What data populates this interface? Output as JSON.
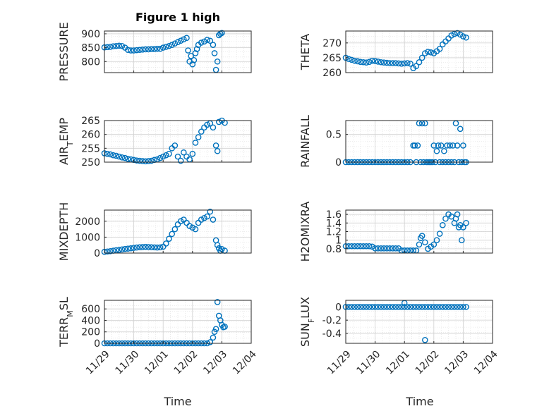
{
  "figure": {
    "title": "Figure 1 high",
    "xlabel_left": "Time",
    "xlabel_right": "Time",
    "marker_color": "#0072BD"
  },
  "chart_data": [
    {
      "type": "scatter",
      "ylabel": "PRESSURE",
      "xlim": [
        0,
        5
      ],
      "xticks": [
        "11/29",
        "11/30",
        "12/01",
        "12/02",
        "12/03",
        "12/04"
      ],
      "ylim": [
        760,
        910
      ],
      "yticks": [
        800,
        850,
        900
      ],
      "grid": true,
      "x": [
        0.0,
        0.1,
        0.2,
        0.3,
        0.4,
        0.5,
        0.6,
        0.7,
        0.8,
        0.9,
        1.0,
        1.1,
        1.2,
        1.3,
        1.4,
        1.5,
        1.6,
        1.7,
        1.8,
        1.9,
        2.0,
        2.1,
        2.2,
        2.3,
        2.4,
        2.5,
        2.6,
        2.7,
        2.8,
        2.85,
        2.9,
        2.95,
        3.0,
        3.05,
        3.1,
        3.15,
        3.2,
        3.3,
        3.4,
        3.5,
        3.6,
        3.7,
        3.75,
        3.8,
        3.85,
        3.9,
        3.95,
        4.0
      ],
      "y": [
        851,
        852,
        853,
        855,
        856,
        857,
        856,
        850,
        842,
        840,
        840,
        841,
        842,
        843,
        844,
        844,
        845,
        845,
        846,
        846,
        850,
        853,
        856,
        860,
        865,
        870,
        875,
        880,
        885,
        840,
        800,
        820,
        790,
        805,
        830,
        845,
        860,
        868,
        872,
        878,
        875,
        860,
        830,
        770,
        800,
        895,
        900,
        903
      ]
    },
    {
      "type": "scatter",
      "ylabel": "THETA",
      "xlim": [
        0,
        5
      ],
      "xticks": [
        "11/29",
        "11/30",
        "12/01",
        "12/02",
        "12/03",
        "12/04"
      ],
      "ylim": [
        260,
        274
      ],
      "yticks": [
        260,
        265,
        270
      ],
      "grid": true,
      "x": [
        0.0,
        0.1,
        0.2,
        0.3,
        0.4,
        0.5,
        0.6,
        0.7,
        0.8,
        0.9,
        1.0,
        1.1,
        1.2,
        1.3,
        1.4,
        1.5,
        1.6,
        1.7,
        1.8,
        1.9,
        2.0,
        2.1,
        2.2,
        2.3,
        2.4,
        2.5,
        2.6,
        2.7,
        2.8,
        2.9,
        3.0,
        3.1,
        3.2,
        3.3,
        3.4,
        3.5,
        3.6,
        3.7,
        3.8,
        3.9,
        4.0,
        4.1
      ],
      "y": [
        265.0,
        264.6,
        264.3,
        264.0,
        263.8,
        263.6,
        263.5,
        263.4,
        263.6,
        264.0,
        263.9,
        263.7,
        263.5,
        263.4,
        263.3,
        263.2,
        263.2,
        263.2,
        263.1,
        263.0,
        263.1,
        263.2,
        263.0,
        261.5,
        262.2,
        263.5,
        265.0,
        266.5,
        267.0,
        266.8,
        266.5,
        267.2,
        268.0,
        269.5,
        270.5,
        271.5,
        272.5,
        273.0,
        273.3,
        272.8,
        272.2,
        271.8
      ]
    },
    {
      "type": "scatter",
      "ylabel": "AIR_TEMP",
      "ylabel_main": "AIR",
      "ylabel_sub": "T",
      "ylabel_tail": "EMP",
      "xlim": [
        0,
        5
      ],
      "xticks": [
        "11/29",
        "11/30",
        "12/01",
        "12/02",
        "12/03",
        "12/04"
      ],
      "ylim": [
        250,
        265
      ],
      "yticks": [
        250,
        255,
        260,
        265
      ],
      "grid": true,
      "x": [
        0.0,
        0.1,
        0.2,
        0.3,
        0.4,
        0.5,
        0.6,
        0.7,
        0.8,
        0.9,
        1.0,
        1.1,
        1.2,
        1.3,
        1.4,
        1.5,
        1.6,
        1.7,
        1.8,
        1.9,
        2.0,
        2.1,
        2.2,
        2.3,
        2.4,
        2.5,
        2.6,
        2.7,
        2.8,
        2.9,
        3.0,
        3.1,
        3.2,
        3.3,
        3.4,
        3.5,
        3.6,
        3.7,
        3.8,
        3.85,
        3.9,
        4.0,
        4.1
      ],
      "y": [
        253.2,
        253.0,
        252.8,
        252.5,
        252.3,
        252.0,
        251.7,
        251.5,
        251.2,
        251.0,
        250.8,
        250.6,
        250.5,
        250.4,
        250.3,
        250.4,
        250.5,
        250.8,
        251.0,
        251.5,
        252.0,
        252.5,
        253.0,
        255.0,
        256.0,
        252.0,
        250.5,
        253.5,
        252.0,
        251.0,
        253.0,
        257.0,
        259.0,
        261.0,
        262.5,
        263.5,
        264.0,
        262.5,
        256.0,
        254.0,
        264.5,
        265.0,
        264.2
      ]
    },
    {
      "type": "scatter",
      "ylabel": "RAINFALL",
      "xlim": [
        0,
        5
      ],
      "xticks": [
        "11/29",
        "11/30",
        "12/01",
        "12/02",
        "12/03",
        "12/04"
      ],
      "ylim": [
        0,
        0.75
      ],
      "yticks": [
        0,
        0.5
      ],
      "grid": true,
      "x": [
        0.0,
        0.1,
        0.2,
        0.3,
        0.4,
        0.5,
        0.6,
        0.7,
        0.8,
        0.9,
        1.0,
        1.1,
        1.2,
        1.3,
        1.4,
        1.5,
        1.6,
        1.7,
        1.8,
        1.9,
        2.0,
        2.1,
        2.2,
        2.3,
        2.35,
        2.4,
        2.45,
        2.5,
        2.55,
        2.6,
        2.65,
        2.7,
        2.75,
        2.8,
        2.85,
        2.9,
        2.95,
        3.0,
        3.05,
        3.1,
        3.15,
        3.2,
        3.25,
        3.3,
        3.35,
        3.4,
        3.45,
        3.5,
        3.55,
        3.6,
        3.65,
        3.7,
        3.75,
        3.8,
        3.85,
        3.9,
        3.95,
        4.0,
        4.05,
        4.1
      ],
      "y": [
        0,
        0,
        0,
        0,
        0,
        0,
        0,
        0,
        0,
        0,
        0,
        0,
        0,
        0,
        0,
        0,
        0,
        0,
        0,
        0,
        0,
        0,
        0,
        0.3,
        0.3,
        0,
        0.3,
        0.7,
        0,
        0.7,
        0,
        0.7,
        0,
        0,
        0,
        0,
        0,
        0.3,
        0,
        0.2,
        0.3,
        0,
        0.3,
        0,
        0.2,
        0,
        0.3,
        0,
        0.3,
        0,
        0.3,
        0,
        0.7,
        0.3,
        0,
        0.6,
        0,
        0.3,
        0,
        0
      ]
    },
    {
      "type": "scatter",
      "ylabel": "MIXDEPTH",
      "xlim": [
        0,
        5
      ],
      "xticks": [
        "11/29",
        "11/30",
        "12/01",
        "12/02",
        "12/03",
        "12/04"
      ],
      "ylim": [
        0,
        2700
      ],
      "yticks": [
        0,
        1000,
        2000
      ],
      "grid": true,
      "x": [
        0.0,
        0.1,
        0.2,
        0.3,
        0.4,
        0.5,
        0.6,
        0.7,
        0.8,
        0.9,
        1.0,
        1.1,
        1.2,
        1.3,
        1.4,
        1.5,
        1.6,
        1.7,
        1.8,
        1.9,
        2.0,
        2.1,
        2.2,
        2.3,
        2.4,
        2.5,
        2.6,
        2.7,
        2.8,
        2.9,
        3.0,
        3.1,
        3.2,
        3.3,
        3.4,
        3.5,
        3.6,
        3.7,
        3.8,
        3.85,
        3.9,
        3.95,
        4.0,
        4.1
      ],
      "y": [
        80,
        100,
        120,
        150,
        180,
        200,
        230,
        260,
        280,
        300,
        330,
        350,
        370,
        380,
        390,
        380,
        370,
        360,
        350,
        360,
        400,
        600,
        900,
        1200,
        1500,
        1800,
        2000,
        2100,
        1900,
        1700,
        1600,
        1500,
        1900,
        2100,
        2200,
        2300,
        2600,
        2100,
        800,
        500,
        300,
        150,
        250,
        150
      ]
    },
    {
      "type": "scatter",
      "ylabel": "H2OMIXRA",
      "xlim": [
        0,
        5
      ],
      "xticks": [
        "11/29",
        "11/30",
        "12/01",
        "12/02",
        "12/03",
        "12/04"
      ],
      "ylim": [
        0.7,
        1.7
      ],
      "yticks": [
        0.8,
        1,
        1.2,
        1.4,
        1.6
      ],
      "grid": true,
      "x": [
        0.0,
        0.1,
        0.2,
        0.3,
        0.4,
        0.5,
        0.6,
        0.7,
        0.8,
        0.9,
        1.0,
        1.1,
        1.2,
        1.3,
        1.4,
        1.5,
        1.6,
        1.7,
        1.8,
        1.9,
        2.0,
        2.1,
        2.2,
        2.3,
        2.4,
        2.5,
        2.55,
        2.6,
        2.7,
        2.8,
        2.9,
        3.0,
        3.1,
        3.2,
        3.3,
        3.4,
        3.5,
        3.6,
        3.7,
        3.75,
        3.8,
        3.85,
        3.9,
        3.95,
        4.0,
        4.1
      ],
      "y": [
        0.86,
        0.86,
        0.86,
        0.86,
        0.86,
        0.86,
        0.86,
        0.86,
        0.86,
        0.85,
        0.81,
        0.81,
        0.81,
        0.81,
        0.81,
        0.81,
        0.81,
        0.81,
        0.81,
        0.76,
        0.76,
        0.76,
        0.76,
        0.76,
        0.76,
        0.9,
        1.05,
        1.1,
        0.95,
        0.8,
        0.85,
        0.9,
        1.0,
        1.15,
        1.35,
        1.5,
        1.6,
        1.55,
        1.4,
        1.5,
        1.6,
        1.3,
        1.35,
        1.0,
        1.3,
        1.4
      ]
    },
    {
      "type": "scatter",
      "ylabel": "TERR_MSL",
      "ylabel_main": "TERR",
      "ylabel_sub": "M",
      "ylabel_tail": "SL",
      "xlim": [
        0,
        5
      ],
      "xticks": [
        "11/29",
        "11/30",
        "12/01",
        "12/02",
        "12/03",
        "12/04"
      ],
      "ylim": [
        0,
        750
      ],
      "yticks": [
        0,
        200,
        400,
        600
      ],
      "grid": true,
      "x": [
        0.0,
        0.1,
        0.2,
        0.3,
        0.4,
        0.5,
        0.6,
        0.7,
        0.8,
        0.9,
        1.0,
        1.1,
        1.2,
        1.3,
        1.4,
        1.5,
        1.6,
        1.7,
        1.8,
        1.9,
        2.0,
        2.1,
        2.2,
        2.3,
        2.4,
        2.5,
        2.6,
        2.7,
        2.8,
        2.9,
        3.0,
        3.1,
        3.2,
        3.3,
        3.4,
        3.5,
        3.6,
        3.7,
        3.75,
        3.8,
        3.85,
        3.9,
        3.95,
        4.0,
        4.05,
        4.1
      ],
      "y": [
        0,
        0,
        0,
        0,
        0,
        0,
        0,
        0,
        0,
        0,
        0,
        0,
        0,
        0,
        0,
        0,
        0,
        0,
        0,
        0,
        0,
        0,
        0,
        0,
        0,
        0,
        0,
        0,
        0,
        0,
        0,
        0,
        0,
        0,
        0,
        0,
        20,
        100,
        200,
        250,
        720,
        480,
        400,
        320,
        280,
        290
      ]
    },
    {
      "type": "scatter",
      "ylabel": "SUN_FLUX",
      "ylabel_main": "SUN",
      "ylabel_sub": "F",
      "ylabel_tail": "LUX",
      "xlim": [
        0,
        5
      ],
      "xticks": [
        "11/29",
        "11/30",
        "12/01",
        "12/02",
        "12/03",
        "12/04"
      ],
      "ylim": [
        -0.55,
        0.1
      ],
      "yticks": [
        -0.4,
        -0.2,
        0
      ],
      "grid": true,
      "x": [
        0.0,
        0.1,
        0.2,
        0.3,
        0.4,
        0.5,
        0.6,
        0.7,
        0.8,
        0.9,
        1.0,
        1.1,
        1.2,
        1.3,
        1.4,
        1.5,
        1.6,
        1.7,
        1.8,
        1.9,
        2.0,
        2.1,
        2.2,
        2.3,
        2.4,
        2.5,
        2.6,
        2.7,
        2.8,
        2.9,
        3.0,
        3.1,
        3.2,
        3.3,
        3.4,
        3.5,
        3.6,
        3.7,
        3.8,
        3.9,
        4.0,
        4.1,
        2.0,
        2.7
      ],
      "y": [
        0,
        0,
        0,
        0,
        0,
        0,
        0,
        0,
        0,
        0,
        0,
        0,
        0,
        0,
        0,
        0,
        0,
        0,
        0,
        0,
        0,
        0,
        0,
        0,
        0,
        0,
        0,
        0,
        0,
        0,
        0,
        0,
        0,
        0,
        0,
        0,
        0,
        0,
        0,
        0,
        0,
        0,
        0.06,
        -0.5
      ]
    }
  ]
}
